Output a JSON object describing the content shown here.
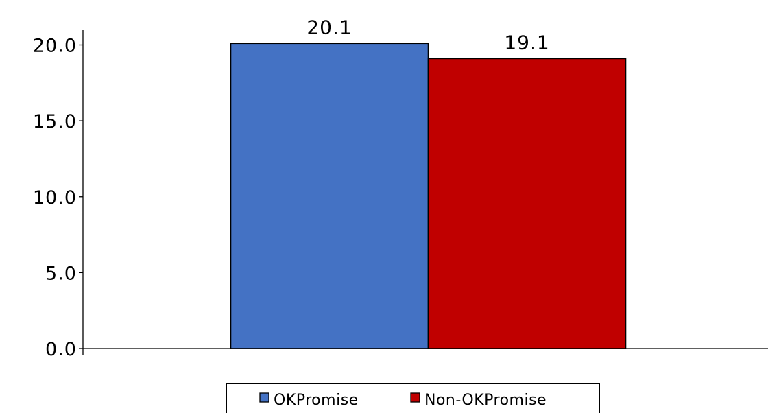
{
  "chart_data": {
    "type": "bar",
    "categories": [
      ""
    ],
    "series": [
      {
        "name": "OKPromise",
        "values": [
          20.1
        ],
        "color": "#4472C4"
      },
      {
        "name": "Non-OKPromise",
        "values": [
          19.1
        ],
        "color": "#C00000"
      }
    ],
    "data_labels": [
      "20.1",
      "19.1"
    ],
    "y_ticks": [
      "0.0",
      "5.0",
      "10.0",
      "15.0",
      "20.0"
    ],
    "ylim": [
      0,
      20
    ],
    "grid": false,
    "legend_position": "bottom",
    "title": "",
    "xlabel": "",
    "ylabel": ""
  }
}
